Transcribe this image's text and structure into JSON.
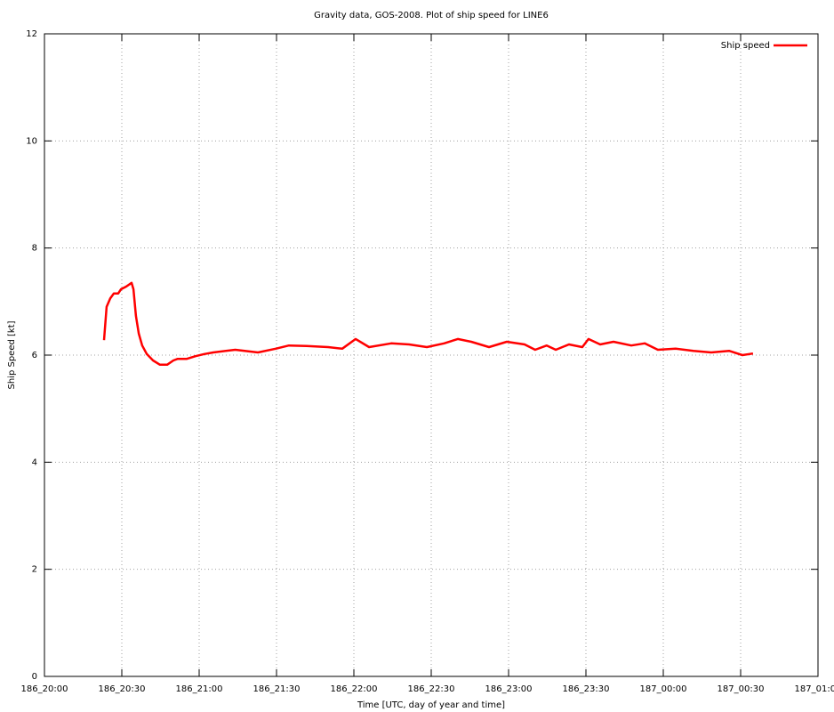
{
  "chart_data": {
    "type": "line",
    "title": "Gravity data, GOS-2008. Plot of ship speed for LINE6",
    "xlabel": "Time [UTC, day of year and time]",
    "ylabel": "Ship Speed [kt]",
    "x": [
      23.1,
      24.1,
      25.5,
      26.9,
      28.6,
      29.7,
      31.7,
      33.8,
      34.5,
      35.5,
      36.6,
      37.9,
      39.7,
      42.1,
      44.8,
      47.6,
      50,
      51.7,
      55.2,
      58.6,
      62,
      65.5,
      74,
      82.8,
      89.7,
      94.8,
      101.7,
      110,
      115.5,
      120.7,
      125.9,
      134.5,
      141.4,
      148.3,
      155,
      160.3,
      165.5,
      172.4,
      179.3,
      186.2,
      190.3,
      194.8,
      198.3,
      203.4,
      208.6,
      211,
      215.5,
      220.7,
      227.6,
      232.8,
      237.9,
      244.8,
      251.7,
      258.6,
      265.5,
      270.7,
      274.8
    ],
    "series": [
      {
        "name": "Ship speed",
        "color": "#ff0000",
        "values": [
          6.28,
          6.9,
          7.06,
          7.15,
          7.15,
          7.23,
          7.28,
          7.35,
          7.23,
          6.73,
          6.4,
          6.18,
          6.02,
          5.9,
          5.82,
          5.82,
          5.9,
          5.93,
          5.93,
          5.98,
          6.02,
          6.05,
          6.1,
          6.05,
          6.12,
          6.18,
          6.17,
          6.15,
          6.12,
          6.3,
          6.15,
          6.22,
          6.2,
          6.15,
          6.22,
          6.3,
          6.25,
          6.15,
          6.25,
          6.2,
          6.1,
          6.18,
          6.1,
          6.2,
          6.15,
          6.3,
          6.2,
          6.25,
          6.18,
          6.22,
          6.1,
          6.12,
          6.08,
          6.05,
          6.08,
          6.0,
          6.03
        ]
      }
    ],
    "xlim": [
      0,
      300
    ],
    "xticks": [
      {
        "value": 0,
        "label": "186_20:00"
      },
      {
        "value": 30,
        "label": "186_20:30"
      },
      {
        "value": 60,
        "label": "186_21:00"
      },
      {
        "value": 90,
        "label": "186_21:30"
      },
      {
        "value": 120,
        "label": "186_22:00"
      },
      {
        "value": 150,
        "label": "186_22:30"
      },
      {
        "value": 180,
        "label": "186_23:00"
      },
      {
        "value": 210,
        "label": "186_23:30"
      },
      {
        "value": 240,
        "label": "187_00:00"
      },
      {
        "value": 270,
        "label": "187_00:30"
      },
      {
        "value": 300,
        "label": "187_01:00"
      }
    ],
    "ylim": [
      0,
      12
    ],
    "yticks": [
      0,
      2,
      4,
      6,
      8,
      10,
      12
    ],
    "grid": true,
    "legend": "upper right"
  }
}
